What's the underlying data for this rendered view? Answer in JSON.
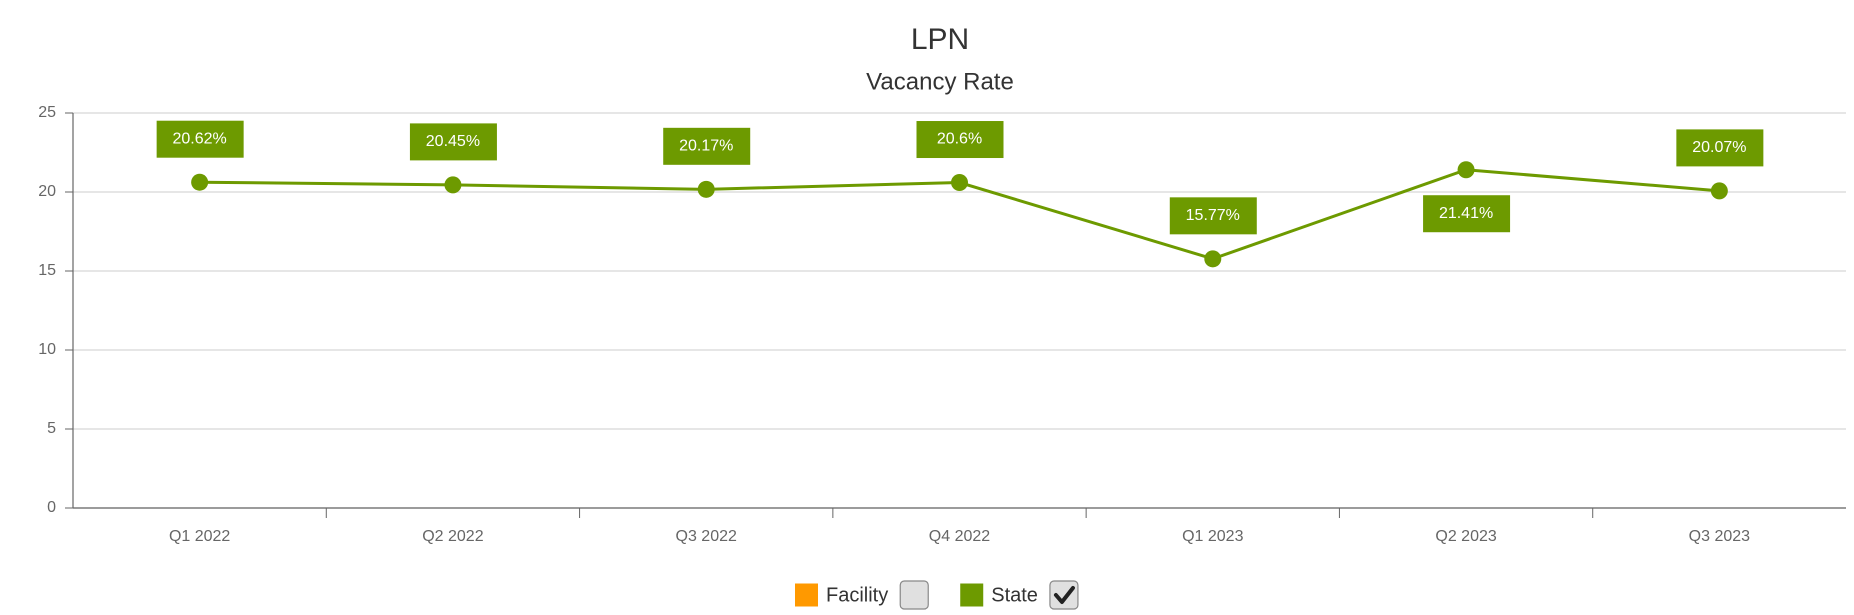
{
  "chart_data": {
    "type": "line",
    "title": "LPN",
    "subtitle": "Vacancy Rate",
    "categories": [
      "Q1 2022",
      "Q2 2022",
      "Q3 2022",
      "Q4 2022",
      "Q1 2023",
      "Q2 2023",
      "Q3 2023"
    ],
    "series": [
      {
        "name": "State",
        "color": "#6d9a00",
        "values": [
          20.62,
          20.45,
          20.17,
          20.6,
          15.77,
          21.41,
          20.07
        ],
        "value_labels": [
          "20.62%",
          "20.45%",
          "20.17%",
          "20.6%",
          "15.77%",
          "21.41%",
          "20.07%"
        ]
      }
    ],
    "legend": [
      {
        "name": "Facility",
        "color": "#ff9900",
        "checked": false
      },
      {
        "name": "State",
        "color": "#6d9a00",
        "checked": true
      }
    ],
    "ylim": [
      0,
      25
    ],
    "yticks": [
      0,
      5,
      10,
      15,
      20,
      25
    ],
    "grid": true
  }
}
